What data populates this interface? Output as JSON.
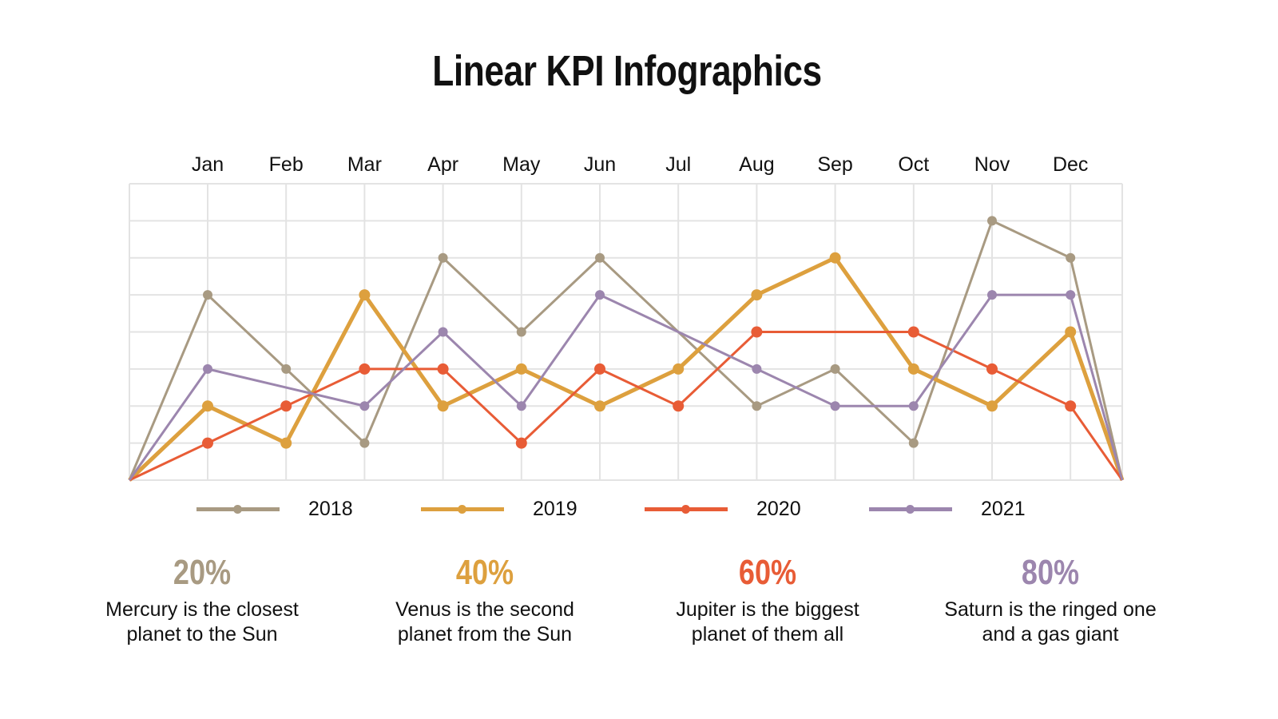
{
  "title": "Linear KPI Infographics",
  "chart_data": {
    "type": "line",
    "categories": [
      "Jan",
      "Feb",
      "Mar",
      "Apr",
      "May",
      "Jun",
      "Jul",
      "Aug",
      "Sep",
      "Oct",
      "Nov",
      "Dec"
    ],
    "edge_values": [
      0,
      0
    ],
    "ylim": [
      0,
      8
    ],
    "grid": true,
    "legend_position": "bottom",
    "series": [
      {
        "name": "2018",
        "color": "#A89A82",
        "values": [
          5,
          3,
          1,
          6,
          4,
          6,
          4,
          2,
          3,
          1,
          7,
          6
        ],
        "markerless_months": [
          "Jul"
        ]
      },
      {
        "name": "2019",
        "color": "#DDA03E",
        "values": [
          2,
          1,
          5,
          2,
          3,
          2,
          3,
          5,
          6,
          3,
          2,
          4
        ],
        "markerless_months": []
      },
      {
        "name": "2020",
        "color": "#E85C36",
        "values": [
          1,
          2,
          3,
          3,
          1,
          3,
          2,
          4,
          4,
          4,
          3,
          2
        ],
        "markerless_months": [
          "Sep"
        ]
      },
      {
        "name": "2021",
        "color": "#9C86AE",
        "values": [
          3,
          2.5,
          2,
          4,
          2,
          5,
          4,
          3,
          2,
          2,
          5,
          5
        ],
        "markerless_months": [
          "Feb",
          "Jul"
        ]
      }
    ]
  },
  "kpis": [
    {
      "value": "20%",
      "text_line1": "Mercury is the closest",
      "text_line2": "planet to the Sun",
      "color": "#A89A82"
    },
    {
      "value": "40%",
      "text_line1": "Venus is the second",
      "text_line2": "planet from the Sun",
      "color": "#DDA03E"
    },
    {
      "value": "60%",
      "text_line1": "Jupiter is the biggest",
      "text_line2": "planet of them all",
      "color": "#E85C36"
    },
    {
      "value": "80%",
      "text_line1": "Saturn is the ringed one",
      "text_line2": "and a gas giant",
      "color": "#9C86AE"
    }
  ]
}
